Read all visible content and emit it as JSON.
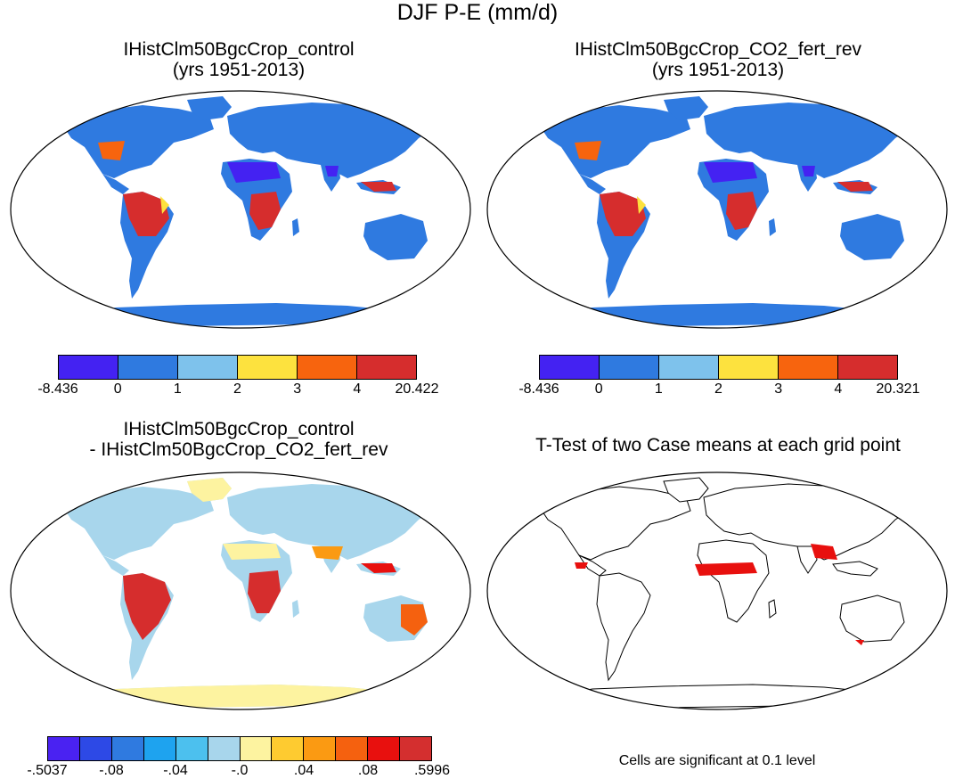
{
  "figure": {
    "title": "DJF P-E (mm/d)",
    "note": "Cells are significant at 0.1 level"
  },
  "panels": [
    {
      "title_line1": "IHistClm50BgcCrop_control",
      "title_line2": "(yrs 1951-2013)"
    },
    {
      "title_line1": "IHistClm50BgcCrop_CO2_fert_rev",
      "title_line2": "(yrs 1951-2013)"
    },
    {
      "title_line1": "IHistClm50BgcCrop_control",
      "title_line2": "- IHistClm50BgcCrop_CO2_fert_rev"
    },
    {
      "title_line1": "T-Test of two Case means at each grid point",
      "title_line2": ""
    }
  ],
  "colorbars": [
    {
      "colors": [
        "#4422f2",
        "#2f7ae0",
        "#7ec2ec",
        "#fde23e",
        "#f7640e",
        "#d62d2d"
      ],
      "labels": [
        "-8.436",
        "0",
        "1",
        "2",
        "3",
        "4",
        "20.422"
      ]
    },
    {
      "colors": [
        "#4422f2",
        "#2f7ae0",
        "#7ec2ec",
        "#fde23e",
        "#f7640e",
        "#d62d2d"
      ],
      "labels": [
        "-8.436",
        "0",
        "1",
        "2",
        "3",
        "4",
        "20.321"
      ]
    },
    {
      "colors": [
        "#4a22f2",
        "#2d49e6",
        "#2f7ae0",
        "#1ea3ef",
        "#4cc0ee",
        "#a8d6ec",
        "#fdf3a0",
        "#fecb30",
        "#fb9a12",
        "#f5610f",
        "#e8100e",
        "#d42f2f"
      ],
      "labels": [
        "-.5037",
        "-.08",
        "-.04",
        "-.0",
        ".04",
        ".08",
        ".5996"
      ]
    }
  ]
}
